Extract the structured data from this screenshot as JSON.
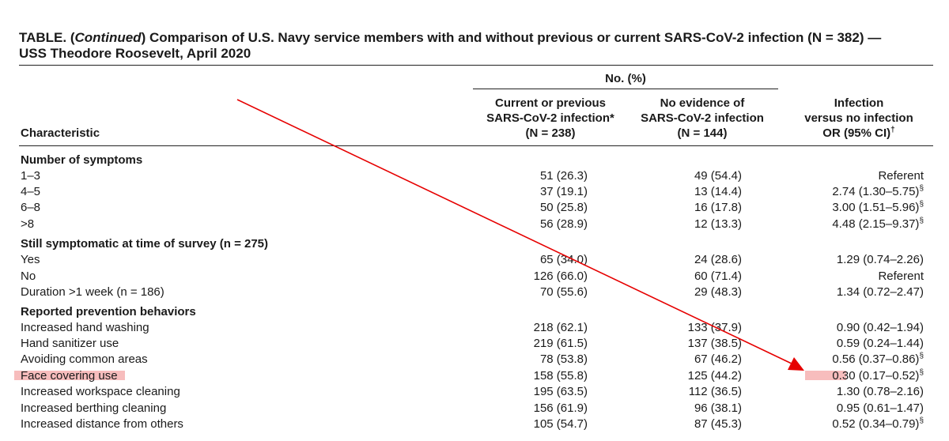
{
  "title": {
    "prefix": "TABLE. (",
    "continued": "Continued",
    "rest": ") Comparison of U.S. Navy service members with and without previous or current SARS-CoV-2 infection (N = 382) —",
    "line2": "USS Theodore Roosevelt, April 2020"
  },
  "header": {
    "group": "No. (%)",
    "characteristic": "Characteristic",
    "col1": [
      "Current or previous",
      "SARS-CoV-2 infection*",
      "(N = 238)"
    ],
    "col2": [
      "No evidence of",
      "SARS-CoV-2 infection",
      "(N = 144)"
    ],
    "col3": [
      "Infection",
      "versus no infection",
      "OR (95% CI)"
    ],
    "col3_mark": "†"
  },
  "rows": [
    {
      "label": "Number of symptoms",
      "section": true
    },
    {
      "label": "1–3",
      "c1": "51 (26.3)",
      "c2": "49 (54.4)",
      "c3": "Referent",
      "mark": ""
    },
    {
      "label": "4–5",
      "c1": "37 (19.1)",
      "c2": "13 (14.4)",
      "c3": "2.74 (1.30–5.75)",
      "mark": "§"
    },
    {
      "label": "6–8",
      "c1": "50 (25.8)",
      "c2": "16 (17.8)",
      "c3": "3.00 (1.51–5.96)",
      "mark": "§"
    },
    {
      "label": ">8",
      "c1": "56 (28.9)",
      "c2": "12 (13.3)",
      "c3": "4.48 (2.15–9.37)",
      "mark": "§"
    },
    {
      "label": "Still symptomatic at time of survey",
      "label_extra": " (n = 275)",
      "section": true
    },
    {
      "label": "Yes",
      "c1": "65 (34.0)",
      "c2": "24 (28.6)",
      "c3": "1.29 (0.74–2.26)",
      "mark": ""
    },
    {
      "label": "No",
      "c1": "126 (66.0)",
      "c2": "60 (71.4)",
      "c3": "Referent",
      "mark": ""
    },
    {
      "label": "Duration >1 week (n = 186)",
      "c1": "70 (55.6)",
      "c2": "29 (48.3)",
      "c3": "1.34 (0.72–2.47)",
      "mark": ""
    },
    {
      "label": "Reported prevention behaviors",
      "section": true
    },
    {
      "label": "Increased hand washing",
      "c1": "218 (62.1)",
      "c2": "133 (37.9)",
      "c3": "0.90 (0.42–1.94)",
      "mark": ""
    },
    {
      "label": "Hand sanitizer use",
      "c1": "219 (61.5)",
      "c2": "137 (38.5)",
      "c3": "0.59 (0.24–1.44)",
      "mark": ""
    },
    {
      "label": "Avoiding common areas",
      "c1": "78 (53.8)",
      "c2": "67 (46.2)",
      "c3": "0.56 (0.37–0.86)",
      "mark": "§"
    },
    {
      "label": "Face covering use",
      "c1": "158 (55.8)",
      "c2": "125 (44.2)",
      "c3": "0.30 (0.17–0.52)",
      "mark": "§",
      "highlight": true
    },
    {
      "label": "Increased workspace cleaning",
      "c1": "195 (63.5)",
      "c2": "112 (36.5)",
      "c3": "1.30 (0.78–2.16)",
      "mark": ""
    },
    {
      "label": "Increased berthing cleaning",
      "c1": "156 (61.9)",
      "c2": "96 (38.1)",
      "c3": "0.95 (0.61–1.47)",
      "mark": ""
    },
    {
      "label": "Increased distance from others",
      "c1": "105 (54.7)",
      "c2": "87 (45.3)",
      "c3": "0.52 (0.34–0.79)",
      "mark": "§"
    }
  ],
  "annotation": {
    "arrow_color": "#e60000",
    "highlight_color": "#f4a7a7"
  }
}
